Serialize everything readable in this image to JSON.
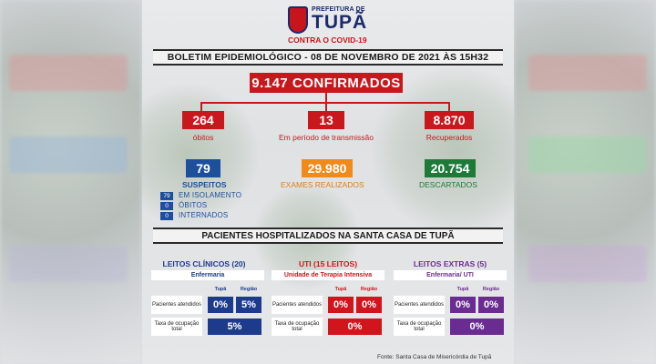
{
  "header": {
    "logo_small": "PREFEITURA DE",
    "logo_big": "TUPÃ",
    "logo_sub": "CONTRA O COVID-19"
  },
  "bulletin": {
    "title": "BOLETIM EPIDEMIOLÓGICO - 08 DE NOVEMBRO DE 2021 ÀS 15H32"
  },
  "confirmed": {
    "value": "9.147 CONFIRMADOS"
  },
  "stats_red": [
    {
      "value": "264",
      "label": "óbitos"
    },
    {
      "value": "13",
      "label": "Em período de transmissão"
    },
    {
      "value": "8.870",
      "label": "Recuperados"
    }
  ],
  "suspects": {
    "value": "79",
    "label": "SUSPEITOS",
    "details": [
      {
        "value": "79",
        "label": "EM ISOLAMENTO"
      },
      {
        "value": "0",
        "label": "ÓBITOS"
      },
      {
        "value": "0",
        "label": "INTERNADOS"
      }
    ]
  },
  "exams": {
    "value": "29.980",
    "label": "EXAMES REALIZADOS"
  },
  "discarded": {
    "value": "20.754",
    "label": "DESCARTADOS"
  },
  "hospital": {
    "title": "PACIENTES HOSPITALIZADOS NA SANTA CASA DE TUPÃ",
    "col_tupa": "Tupã",
    "col_regiao": "Região",
    "row_atendidos": "Pacientes atendidos",
    "row_ocupacao": "Taxa de ocupação total",
    "sections": [
      {
        "title": "LEITOS CLÍNICOS (20)",
        "subtitle": "Enfermaria",
        "tupa": "0%",
        "regiao": "5%",
        "total": "5%",
        "color": "#1d3b8c"
      },
      {
        "title": "UTI (15 LEITOS)",
        "subtitle": "Unidade de Terapia Intensiva",
        "tupa": "0%",
        "regiao": "0%",
        "total": "0%",
        "color": "#d0151c"
      },
      {
        "title": "LEITOS EXTRAS (5)",
        "subtitle": "Enfermaria/ UTI",
        "tupa": "0%",
        "regiao": "0%",
        "total": "0%",
        "color": "#6b2c91"
      }
    ]
  },
  "source": "Fonte: Santa Casa de Misericórdia de Tupã"
}
